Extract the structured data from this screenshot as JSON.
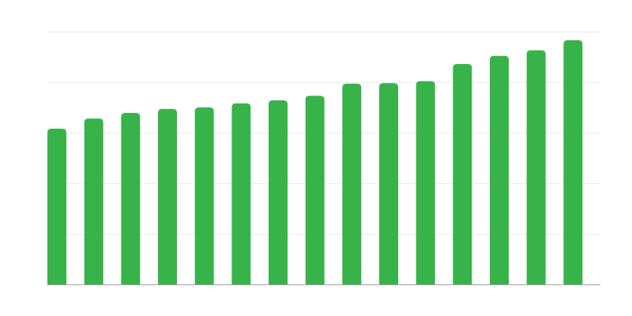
{
  "chart_data": {
    "type": "bar",
    "categories": [
      null,
      null,
      null,
      null,
      null,
      null,
      null,
      null,
      null,
      null,
      null,
      null,
      null,
      null,
      null
    ],
    "values": [
      3.08,
      3.28,
      3.39,
      3.47,
      3.5,
      3.58,
      3.64,
      3.73,
      3.97,
      3.98,
      4.02,
      4.36,
      4.52,
      4.63,
      4.83
    ],
    "color": "#37b34a",
    "ylim": [
      0,
      5
    ],
    "yticks": [
      0,
      1,
      2,
      3,
      4,
      5
    ],
    "grid": true
  }
}
